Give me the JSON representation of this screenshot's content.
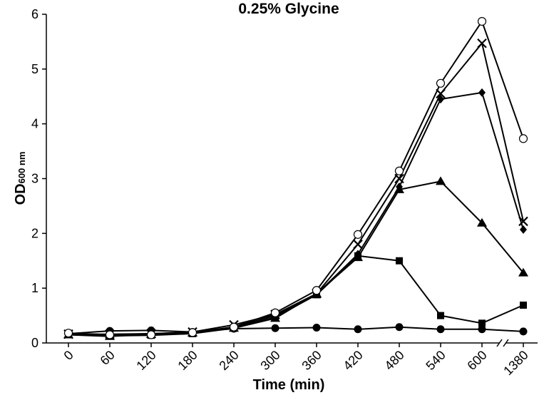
{
  "chart_data": {
    "type": "line",
    "title": "0.25% Glycine",
    "xlabel": "Time (min)",
    "ylabel_main": "OD",
    "ylabel_sub": "600 nm",
    "categories": [
      "0",
      "60",
      "120",
      "180",
      "240",
      "300",
      "360",
      "420",
      "480",
      "540",
      "600",
      "1380"
    ],
    "x_axis_break_between": [
      "600",
      "1380"
    ],
    "ylim": [
      0,
      6
    ],
    "yticks": [
      0,
      1,
      2,
      3,
      4,
      5,
      6
    ],
    "grid": false,
    "series": [
      {
        "marker": "circle-filled",
        "values": [
          0.17,
          0.22,
          0.23,
          0.2,
          0.26,
          0.27,
          0.28,
          0.25,
          0.29,
          0.25,
          0.25,
          0.21
        ]
      },
      {
        "marker": "square-filled",
        "values": [
          0.15,
          0.13,
          0.14,
          0.17,
          0.27,
          0.47,
          0.88,
          1.59,
          1.5,
          0.5,
          0.36,
          0.69
        ]
      },
      {
        "marker": "triangle-filled",
        "values": [
          0.15,
          0.12,
          0.16,
          0.18,
          0.27,
          0.45,
          0.9,
          1.56,
          2.8,
          2.95,
          2.19,
          1.28
        ]
      },
      {
        "marker": "diamond-filled",
        "values": [
          0.16,
          0.15,
          0.17,
          0.19,
          0.29,
          0.5,
          0.89,
          1.62,
          2.85,
          4.45,
          4.57,
          2.07
        ]
      },
      {
        "marker": "x",
        "values": [
          0.16,
          0.16,
          0.17,
          0.2,
          0.33,
          0.52,
          0.9,
          1.8,
          3.0,
          4.55,
          5.47,
          2.22
        ]
      },
      {
        "marker": "circle-open",
        "values": [
          0.18,
          0.15,
          0.15,
          0.19,
          0.29,
          0.55,
          0.96,
          1.98,
          3.14,
          4.74,
          5.87,
          3.73
        ]
      }
    ]
  }
}
